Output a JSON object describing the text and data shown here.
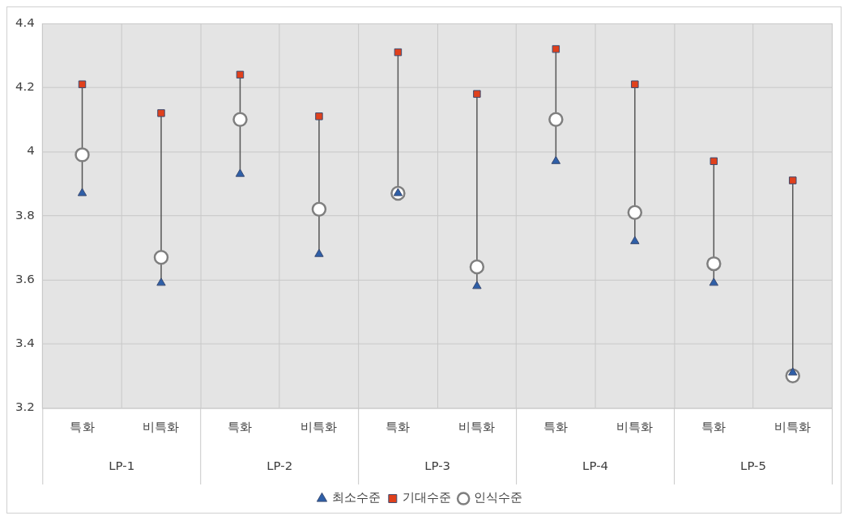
{
  "chart_data": {
    "type": "scatter",
    "categories": [
      "특화",
      "비특화",
      "특화",
      "비특화",
      "특화",
      "비특화",
      "특화",
      "비특화",
      "특화",
      "비특화"
    ],
    "annotations": [
      "LP-1",
      "LP-2",
      "LP-3",
      "LP-4",
      "LP-5"
    ],
    "series": [
      {
        "name": "최소수준",
        "color": "#2e5fa8",
        "marker": "triangle",
        "values": [
          3.87,
          3.59,
          3.93,
          3.68,
          3.87,
          3.58,
          3.97,
          3.72,
          3.59,
          3.31
        ]
      },
      {
        "name": "기대수준",
        "color": "#e0401c",
        "marker": "square",
        "values": [
          4.21,
          4.12,
          4.24,
          4.11,
          4.31,
          4.18,
          4.32,
          4.21,
          3.97,
          3.91
        ]
      },
      {
        "name": "인식수준",
        "color": "#7f7f7f",
        "marker": "circle",
        "values": [
          3.99,
          3.67,
          4.1,
          3.82,
          3.87,
          3.64,
          4.1,
          3.81,
          3.65,
          3.3
        ]
      }
    ],
    "ylim": [
      3.2,
      4.4
    ],
    "yticks": [
      3.2,
      3.4,
      3.6,
      3.8,
      4,
      4.2,
      4.4
    ],
    "grid": true,
    "legend": "bottom"
  }
}
